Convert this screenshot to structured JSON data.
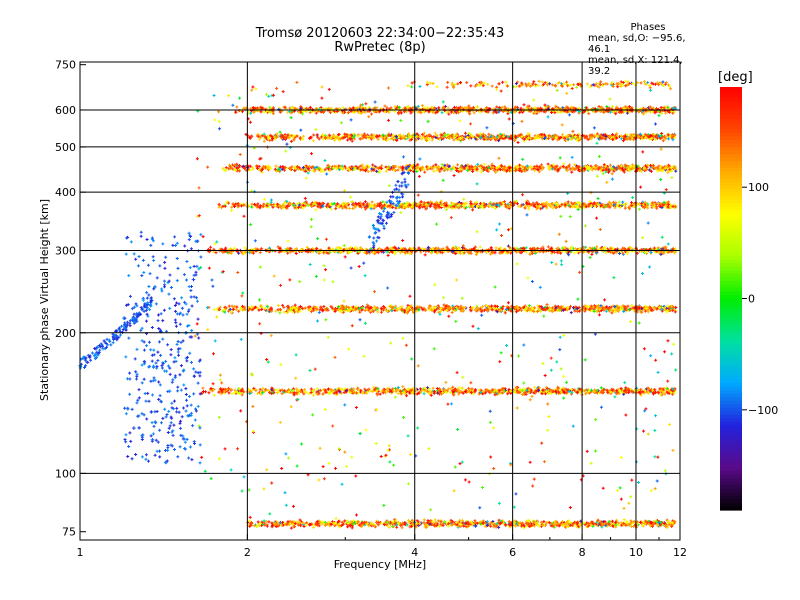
{
  "header": {
    "title": "Tromsø 20120603 22:34:00−22:35:43",
    "subtitle": "RwPretec (8p)"
  },
  "phases_box": {
    "title": "Phases",
    "line1": "mean, sd,O: −95.6, 46.1",
    "line2": "mean, sd,X: 121.4, 39.2"
  },
  "colorbar": {
    "unit_label": "[deg]",
    "tick_values": [
      100,
      0,
      -100
    ],
    "tick_labels": [
      "100",
      "0",
      "−100"
    ],
    "range": [
      -190,
      190
    ],
    "colors": [
      "#000000",
      "#5a0a8a",
      "#2222dd",
      "#00aaff",
      "#00e0a0",
      "#00ee00",
      "#aaff00",
      "#ffff00",
      "#ffaa00",
      "#ff4400",
      "#ff0000"
    ]
  },
  "chart_data": {
    "type": "scatter",
    "title": "",
    "xlabel": "Frequency [MHz]",
    "ylabel": "Stationary phase Virtual Height [km]",
    "x_scale": "log",
    "y_scale": "log",
    "xlim": [
      1,
      12
    ],
    "ylim": [
      72,
      760
    ],
    "x_ticks": [
      1,
      2,
      4,
      6,
      8,
      10,
      12
    ],
    "x_tick_labels": [
      "1",
      "2",
      "4",
      "6",
      "8",
      "10",
      "12"
    ],
    "y_ticks": [
      75,
      100,
      200,
      300,
      400,
      500,
      600,
      750
    ],
    "y_tick_labels": [
      "75",
      "100",
      "200",
      "300",
      "400",
      "500",
      "600",
      "750"
    ],
    "grid": true,
    "trace_bands": [
      {
        "height": 78,
        "f_start": 2.0,
        "f_end": 11.8
      },
      {
        "height": 150,
        "f_start": 1.65,
        "f_end": 11.8
      },
      {
        "height": 225,
        "f_start": 1.7,
        "f_end": 11.8
      },
      {
        "height": 300,
        "f_start": 1.7,
        "f_end": 11.8
      },
      {
        "height": 375,
        "f_start": 1.75,
        "f_end": 11.8
      },
      {
        "height": 450,
        "f_start": 1.8,
        "f_end": 11.8
      },
      {
        "height": 525,
        "f_start": 2.0,
        "f_end": 11.8
      },
      {
        "height": 600,
        "f_start": 1.9,
        "f_end": 11.8
      },
      {
        "height": 680,
        "f_start": 3.8,
        "f_end": 11.5
      }
    ],
    "low_frequency_echo": [
      {
        "x": 1.0,
        "y": 170
      },
      {
        "x": 1.1,
        "y": 185
      },
      {
        "x": 1.2,
        "y": 215
      },
      {
        "x": 1.3,
        "y": 235
      },
      {
        "x": 1.25,
        "y": 125
      },
      {
        "x": 1.35,
        "y": 118
      },
      {
        "x": 1.45,
        "y": 150
      },
      {
        "x": 1.55,
        "y": 200
      },
      {
        "x": 1.6,
        "y": 260
      }
    ],
    "spread_echo": {
      "f_start": 3.3,
      "f_end": 3.9,
      "h_start": 310,
      "h_end": 440
    }
  }
}
